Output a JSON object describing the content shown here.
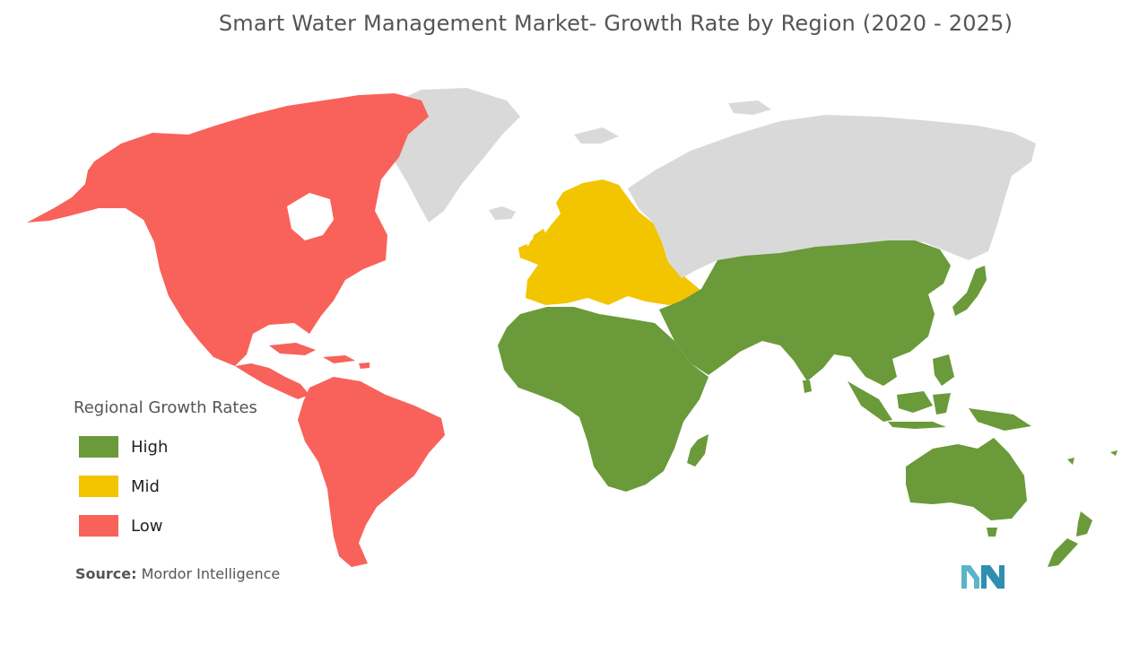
{
  "title": "Smart Water Management Market- Growth Rate by Region (2020 - 2025)",
  "legend": {
    "title": "Regional Growth Rates",
    "items": [
      {
        "label": "High",
        "color": "#6a9a3a"
      },
      {
        "label": "Mid",
        "color": "#f2c500"
      },
      {
        "label": "Low",
        "color": "#f8625a"
      }
    ]
  },
  "regions": {
    "north_america": "Low",
    "south_america": "Low",
    "europe": "Mid",
    "africa": "High",
    "middle_east": "High",
    "asia_pacific": "High",
    "oceania": "High",
    "russia": "no data",
    "greenland": "no data"
  },
  "no_data_color": "#d9d9d9",
  "source": {
    "label": "Source:",
    "value": "Mordor Intelligence"
  },
  "logo_icon": "mordor-intelligence-logo",
  "logo_color": "#5bb4c8"
}
